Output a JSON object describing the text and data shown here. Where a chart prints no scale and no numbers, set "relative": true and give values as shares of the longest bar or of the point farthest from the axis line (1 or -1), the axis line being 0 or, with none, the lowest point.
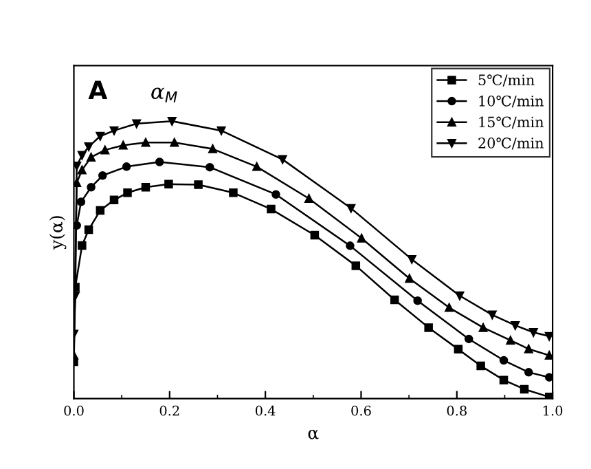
{
  "chart_data": {
    "type": "line",
    "xlabel": "α",
    "ylabel": "y(α)",
    "relative": true,
    "tick_labels": "x",
    "xlim": [
      0.0,
      1.0
    ],
    "xticks": [
      {
        "value": 0.0,
        "label": "0.0"
      },
      0.2,
      0.4,
      0.6,
      0.8,
      {
        "value": 1.0,
        "label": "1.0"
      }
    ],
    "legend": "top right",
    "grid": false,
    "line_style": "solid",
    "annotations": [
      "A",
      "α$_{M}$"
    ],
    "series": [
      {
        "name": "5℃/min",
        "color": "#000000",
        "marker": "square",
        "x": [
          0,
          0.003,
          0.017,
          0.031,
          0.055,
          0.084,
          0.112,
          0.15,
          0.198,
          0.26,
          0.333,
          0.412,
          0.503,
          0.589,
          0.67,
          0.741,
          0.803,
          0.85,
          0.898,
          0.941,
          0.993
        ],
        "values": [
          0.133,
          0.402,
          0.552,
          0.609,
          0.678,
          0.716,
          0.742,
          0.762,
          0.773,
          0.771,
          0.742,
          0.683,
          0.589,
          0.479,
          0.356,
          0.256,
          0.178,
          0.118,
          0.067,
          0.034,
          0.006
        ]
      },
      {
        "name": "10℃/min",
        "color": "#000000",
        "marker": "circle",
        "x": [
          0.006,
          0.015,
          0.036,
          0.06,
          0.11,
          0.179,
          0.284,
          0.422,
          0.577,
          0.718,
          0.825,
          0.898,
          0.95,
          0.993
        ],
        "values": [
          0.624,
          0.709,
          0.762,
          0.804,
          0.836,
          0.853,
          0.834,
          0.736,
          0.551,
          0.353,
          0.215,
          0.138,
          0.095,
          0.077
        ]
      },
      {
        "name": "15℃/min",
        "color": "#000000",
        "marker": "triangle",
        "x": [
          0,
          0.006,
          0.017,
          0.036,
          0.065,
          0.103,
          0.15,
          0.21,
          0.29,
          0.382,
          0.491,
          0.601,
          0.701,
          0.784,
          0.855,
          0.912,
          0.95,
          0.993
        ],
        "values": [
          0.156,
          0.778,
          0.824,
          0.87,
          0.896,
          0.913,
          0.923,
          0.923,
          0.9,
          0.836,
          0.721,
          0.578,
          0.433,
          0.328,
          0.256,
          0.21,
          0.179,
          0.156
        ]
      },
      {
        "name": "20℃/min",
        "color": "#000000",
        "marker": "triangle_down",
        "x": [
          0,
          0.003,
          0.006,
          0.017,
          0.031,
          0.055,
          0.084,
          0.131,
          0.205,
          0.308,
          0.436,
          0.579,
          0.706,
          0.806,
          0.874,
          0.922,
          0.96,
          0.993
        ],
        "values": [
          0.233,
          0.371,
          0.839,
          0.877,
          0.908,
          0.946,
          0.966,
          0.991,
          1.0,
          0.966,
          0.862,
          0.686,
          0.502,
          0.371,
          0.302,
          0.264,
          0.239,
          0.225
        ]
      }
    ]
  }
}
